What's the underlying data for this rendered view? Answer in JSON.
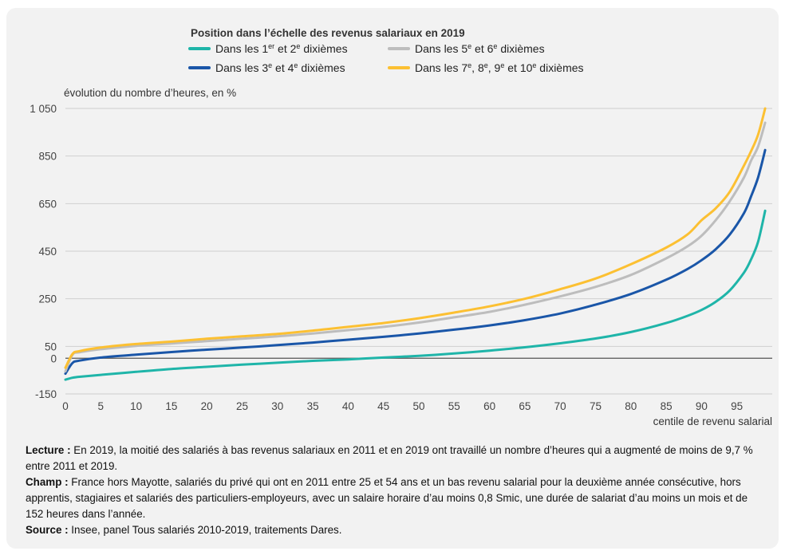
{
  "chart_data": {
    "type": "line",
    "legend_title": "Position dans l’échelle des revenus salariaux en 2019",
    "legend_placement": "top",
    "ylabel": "évolution du nombre d’heures, en %",
    "xlabel": "centile de revenu salarial",
    "ylim": [
      -150,
      1050
    ],
    "xlim": [
      0,
      100
    ],
    "yticks": [
      {
        "value": -150,
        "label": "-150"
      },
      {
        "value": 0,
        "label": "0"
      },
      {
        "value": 50,
        "label": "50"
      },
      {
        "value": 250,
        "label": "250"
      },
      {
        "value": 450,
        "label": "450"
      },
      {
        "value": 650,
        "label": "650"
      },
      {
        "value": 850,
        "label": "850"
      },
      {
        "value": 1050,
        "label": "1 050"
      }
    ],
    "xticks": [
      {
        "value": 0,
        "label": "0"
      },
      {
        "value": 5,
        "label": "5"
      },
      {
        "value": 10,
        "label": "10"
      },
      {
        "value": 15,
        "label": "15"
      },
      {
        "value": 20,
        "label": "20"
      },
      {
        "value": 25,
        "label": "25"
      },
      {
        "value": 30,
        "label": "30"
      },
      {
        "value": 35,
        "label": "35"
      },
      {
        "value": 40,
        "label": "40"
      },
      {
        "value": 45,
        "label": "45"
      },
      {
        "value": 50,
        "label": "50"
      },
      {
        "value": 55,
        "label": "55"
      },
      {
        "value": 60,
        "label": "60"
      },
      {
        "value": 65,
        "label": "65"
      },
      {
        "value": 70,
        "label": "70"
      },
      {
        "value": 75,
        "label": "75"
      },
      {
        "value": 80,
        "label": "80"
      },
      {
        "value": 85,
        "label": "85"
      },
      {
        "value": 90,
        "label": "90"
      },
      {
        "value": 95,
        "label": "95"
      }
    ],
    "x": [
      0,
      1,
      2,
      5,
      10,
      15,
      20,
      25,
      30,
      35,
      40,
      45,
      50,
      55,
      60,
      65,
      70,
      75,
      80,
      85,
      88,
      90,
      92,
      94,
      96,
      97,
      98,
      99
    ],
    "series": [
      {
        "legend_parts": [
          "Dans les 1",
          "er",
          " et 2",
          "e",
          " dixièmes"
        ],
        "color": "#1fb5a9",
        "values": [
          -90,
          -82,
          -78,
          -70,
          -57,
          -45,
          -36,
          -27,
          -19,
          -11,
          -5,
          3,
          10,
          20,
          32,
          46,
          63,
          83,
          110,
          148,
          178,
          203,
          237,
          285,
          360,
          415,
          490,
          620
        ]
      },
      {
        "legend_parts": [
          "Dans les 3",
          "e",
          " et 4",
          "e",
          " dixièmes"
        ],
        "color": "#1a56a8",
        "values": [
          -65,
          -20,
          -10,
          3,
          15,
          26,
          36,
          45,
          55,
          66,
          78,
          90,
          104,
          120,
          138,
          160,
          188,
          225,
          270,
          330,
          375,
          412,
          458,
          520,
          610,
          680,
          760,
          875
        ]
      },
      {
        "legend_parts": [
          "Dans les 5",
          "e",
          " et 6",
          "e",
          " dixièmes"
        ],
        "color": "#bdbdbd",
        "values": [
          -55,
          15,
          25,
          38,
          52,
          62,
          72,
          82,
          92,
          104,
          118,
          132,
          150,
          172,
          195,
          225,
          260,
          300,
          350,
          420,
          470,
          515,
          580,
          660,
          760,
          830,
          890,
          990
        ]
      },
      {
        "legend_parts": [
          "Dans les 7",
          "e",
          ", 8",
          "e",
          ", 9",
          "e",
          " et 10",
          "e",
          " dixièmes"
        ],
        "color": "#fcc032",
        "values": [
          -40,
          18,
          30,
          45,
          60,
          70,
          82,
          92,
          102,
          116,
          132,
          148,
          168,
          192,
          218,
          250,
          290,
          335,
          395,
          465,
          520,
          580,
          630,
          700,
          810,
          870,
          940,
          1050
        ]
      }
    ]
  },
  "notes": {
    "lecture_label": "Lecture :",
    "lecture_text": " En 2019, la moitié des salariés à bas revenus salariaux en 2011 et en 2019 ont travaillé un nombre d’heures qui a augmenté de moins de 9,7 % entre 2011 et 2019.",
    "champ_label": "Champ :",
    "champ_text": " France hors Mayotte, salariés du privé qui ont en 2011 entre 25 et 54 ans et un bas revenu salarial pour la deuxième année consécutive, hors apprentis, stagiaires et salariés des particuliers-employeurs, avec un salaire horaire d’au moins 0,8 Smic, une durée de salariat d’au moins un mois et de 152 heures dans l’année.",
    "source_label": "Source :",
    "source_text": " Insee, panel Tous salariés 2010-2019, traitements Dares."
  }
}
